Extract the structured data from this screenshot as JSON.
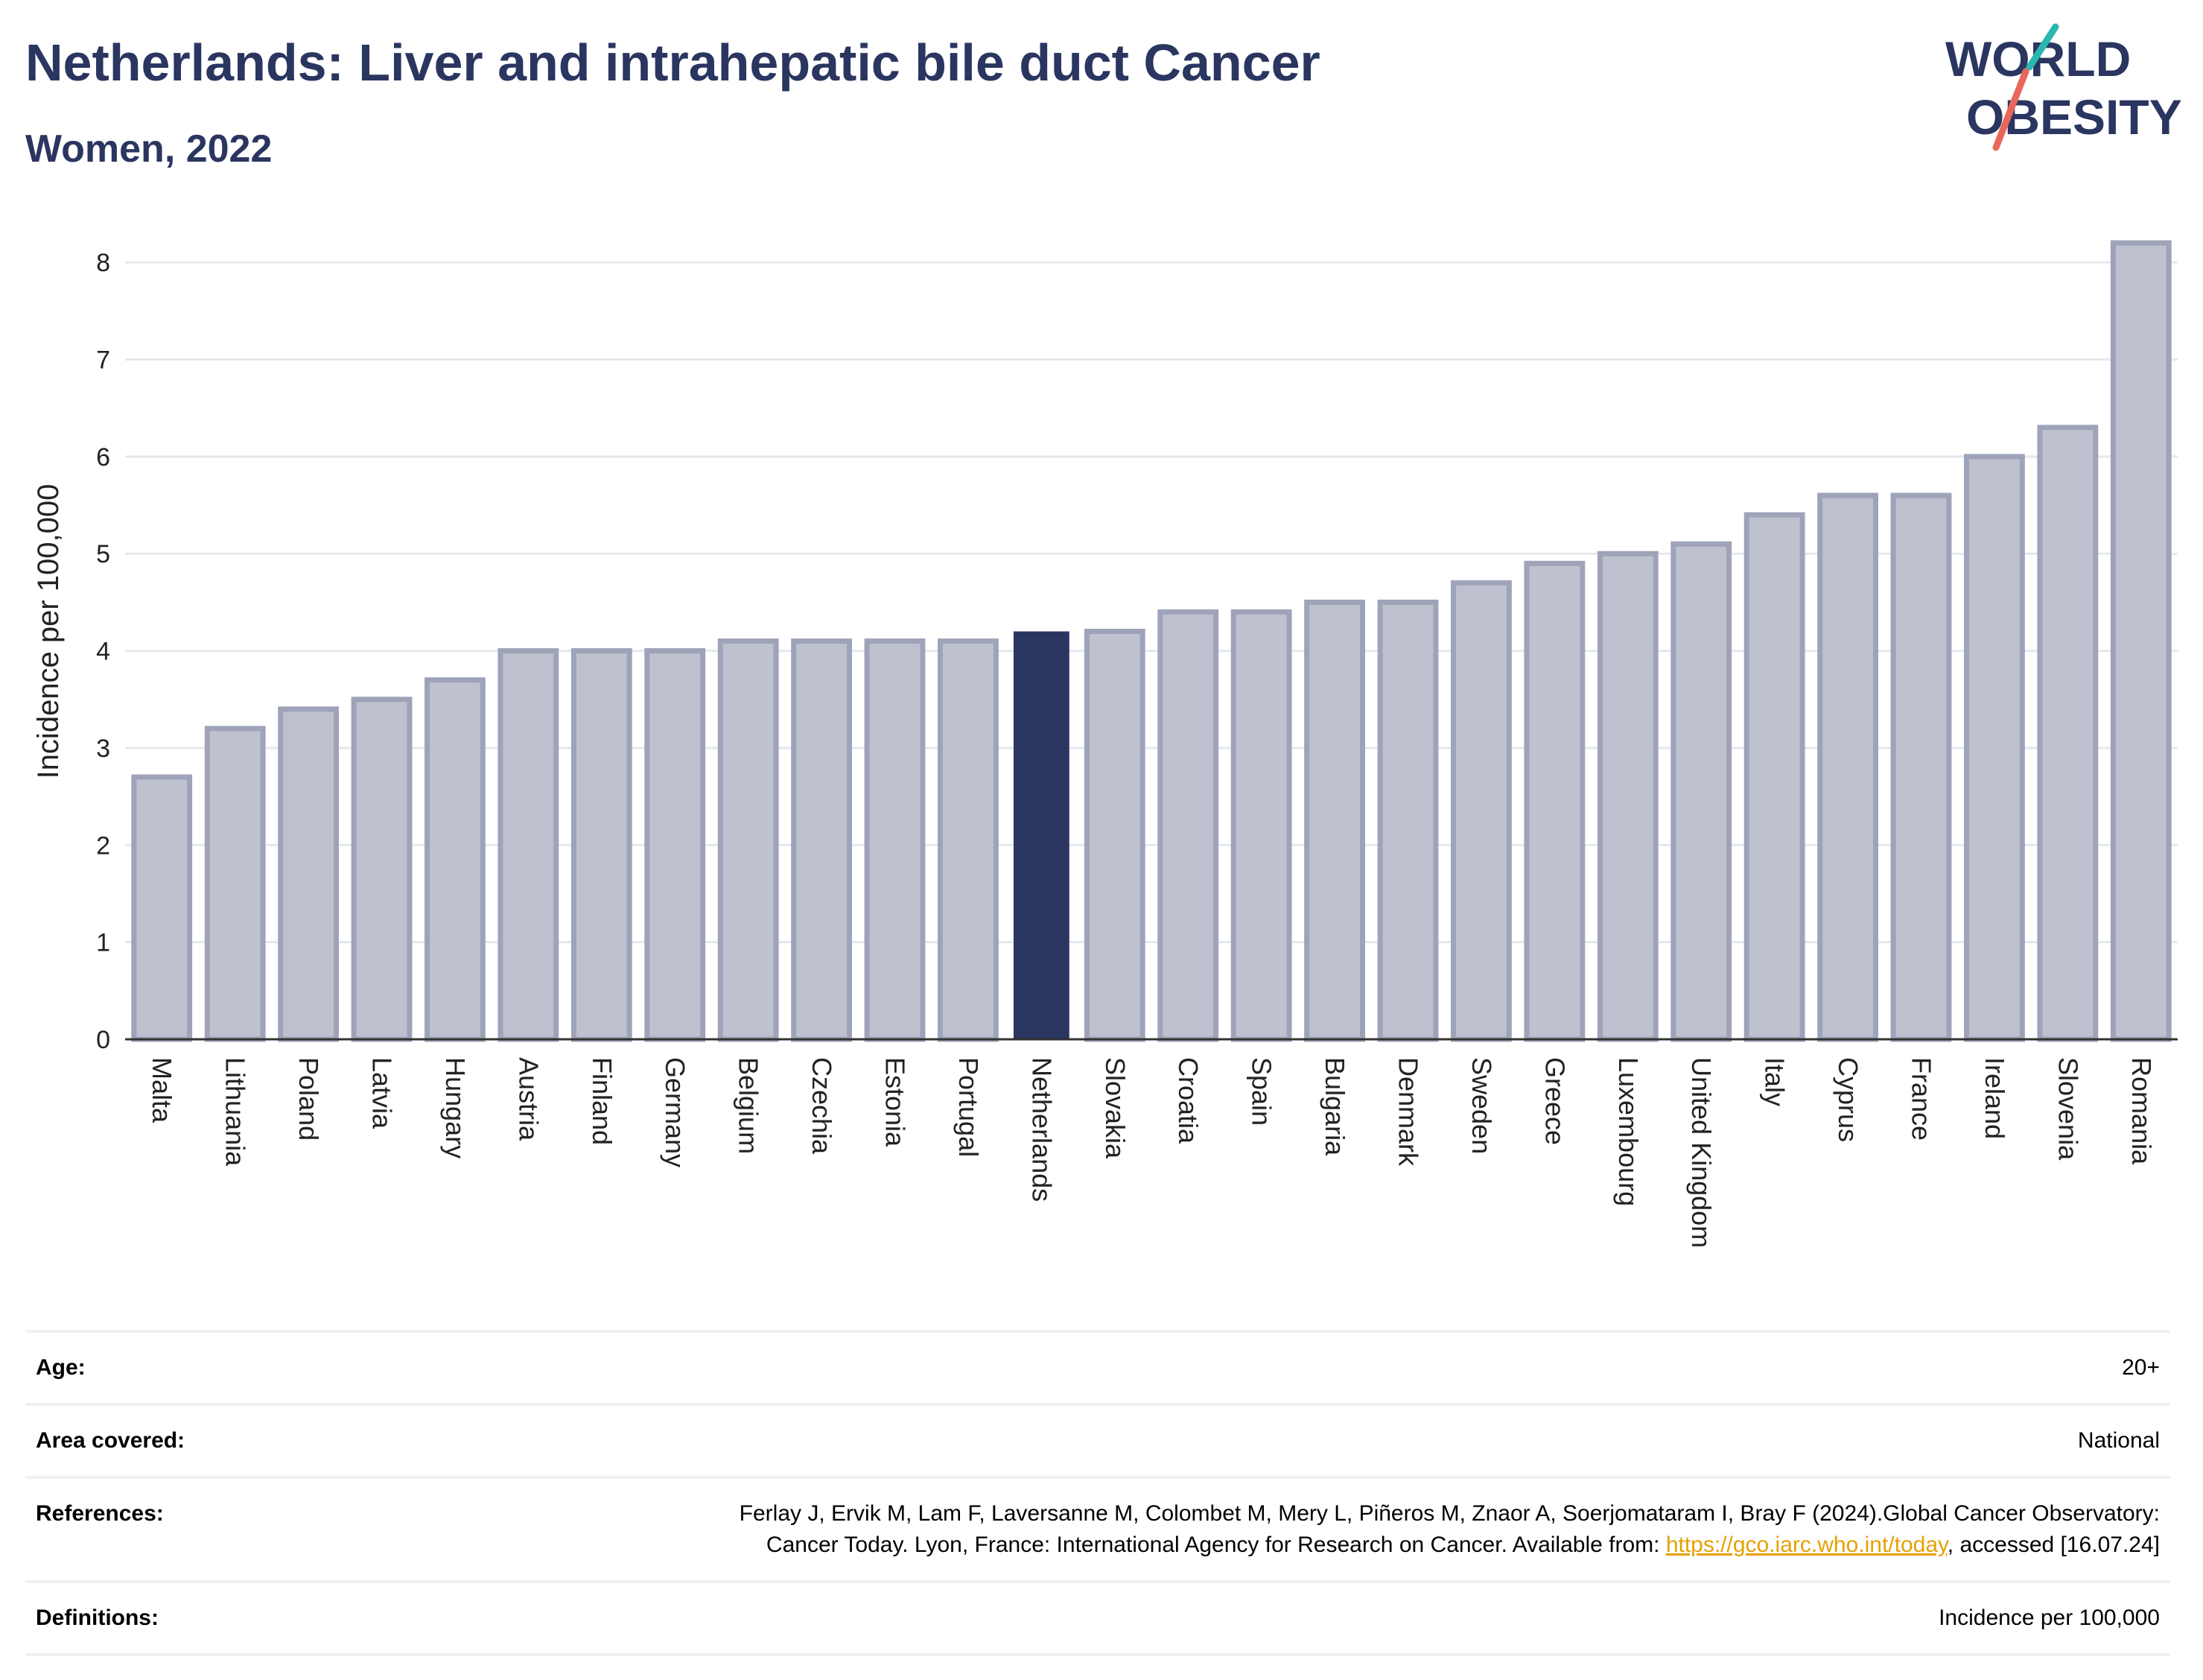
{
  "header": {
    "title": "Netherlands: Liver and intrahepatic bile duct Cancer",
    "subtitle": "Women, 2022"
  },
  "logo": {
    "line1": "WORLD",
    "line2": "OBESITY"
  },
  "chart_data": {
    "type": "bar",
    "title": "Netherlands: Liver and intrahepatic bile duct Cancer",
    "subtitle": "Women, 2022",
    "ylabel": "Incidence per 100,000",
    "xlabel": "",
    "ylim": [
      0,
      8.4
    ],
    "yticks": [
      0,
      1,
      2,
      3,
      4,
      5,
      6,
      7,
      8
    ],
    "grid": true,
    "highlight": "Netherlands",
    "colors": {
      "highlight": "#2a3560",
      "bar": "#bec1ce",
      "bar_border": "#9ea3b9"
    },
    "categories": [
      "Malta",
      "Lithuania",
      "Poland",
      "Latvia",
      "Hungary",
      "Austria",
      "Finland",
      "Germany",
      "Belgium",
      "Czechia",
      "Estonia",
      "Portugal",
      "Netherlands",
      "Slovakia",
      "Croatia",
      "Spain",
      "Bulgaria",
      "Denmark",
      "Sweden",
      "Greece",
      "Luxembourg",
      "United Kingdom",
      "Italy",
      "Cyprus",
      "France",
      "Ireland",
      "Slovenia",
      "Romania"
    ],
    "values": [
      2.7,
      3.2,
      3.4,
      3.5,
      3.7,
      4.0,
      4.0,
      4.0,
      4.1,
      4.1,
      4.1,
      4.1,
      4.2,
      4.2,
      4.4,
      4.4,
      4.5,
      4.5,
      4.7,
      4.9,
      5.0,
      5.1,
      5.4,
      5.6,
      5.6,
      6.0,
      6.3,
      8.2
    ]
  },
  "info": {
    "age_label": "Age:",
    "age_value": "20+",
    "area_label": "Area covered:",
    "area_value": "National",
    "references_label": "References:",
    "references_text": "Ferlay J, Ervik M, Lam F, Laversanne M, Colombet M, Mery L, Piñeros M, Znaor A, Soerjomataram I, Bray F (2024).Global Cancer Observatory: Cancer Today. Lyon, France: International Agency for Research on Cancer. Available from: ",
    "references_link": "https://gco.iarc.who.int/today",
    "references_tail": ", accessed [16.07.24]",
    "definitions_label": "Definitions:",
    "definitions_value": "Incidence per 100,000"
  }
}
